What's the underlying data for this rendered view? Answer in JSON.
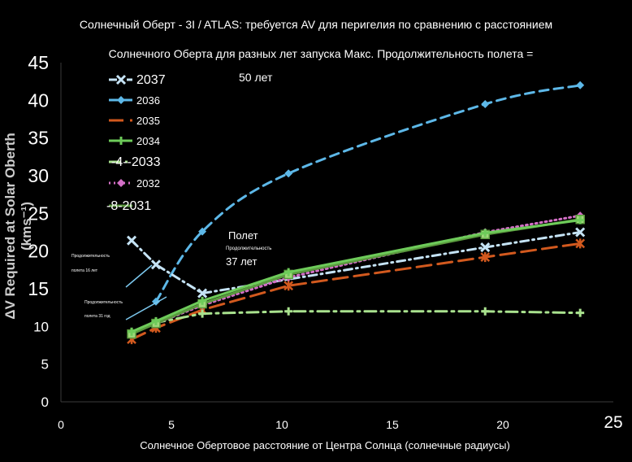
{
  "chart_data": {
    "type": "line",
    "title_lines": [
      "Солнечный Оберт - 3I / ATLAS: требуется AV для перигелия по сравнению с расстоянием",
      "Солнечного Оберта для разных лет запуска Макс. Продолжительность полета =",
      "50 лет"
    ],
    "xlabel": "Солнечное Обертовое расстояние от Центра Солнца (солнечные радиусы)",
    "ylabel": "ΔV Required at Solar Oberth (kms⁻¹)",
    "xlim": [
      0,
      25
    ],
    "ylim": [
      0,
      45
    ],
    "x_ticks": [
      "0",
      "5",
      "10",
      "15",
      "20",
      "25"
    ],
    "y_ticks": [
      "0",
      "5",
      "10",
      "15",
      "20",
      "25",
      "30",
      "35",
      "40",
      "45"
    ],
    "legend_position": "top-left",
    "series": [
      {
        "name": "2037",
        "legend_label": "2037",
        "color": "#c5e3f5",
        "dash": "dashdot",
        "marker": "x",
        "x": [
          3.2,
          4.3,
          6.4,
          19.2,
          23.5
        ],
        "y": [
          21.4,
          18.2,
          14.4,
          20.5,
          22.5
        ]
      },
      {
        "name": "2036",
        "legend_label": "2036",
        "color": "#5db8e8",
        "dash": "dash",
        "marker": "diamond",
        "x": [
          4.3,
          6.4,
          10.3,
          19.2,
          23.5
        ],
        "y": [
          13.3,
          22.6,
          30.3,
          39.5,
          42.0
        ]
      },
      {
        "name": "2035",
        "legend_label": "2035",
        "color": "#d2591e",
        "dash": "longdash",
        "marker": "asterisk",
        "x": [
          3.2,
          4.3,
          6.4,
          10.3,
          19.2,
          23.5
        ],
        "y": [
          8.3,
          9.8,
          12.2,
          15.4,
          19.2,
          21.0
        ]
      },
      {
        "name": "2034",
        "legend_label": "2034",
        "color": "#6ecb5a",
        "dash": "solid",
        "marker": "plus",
        "x": [
          3.2,
          4.3,
          6.4,
          10.3,
          19.2,
          23.5
        ],
        "y": [
          9.3,
          10.7,
          13.4,
          17.2,
          22.4,
          24.1
        ]
      },
      {
        "name": "2033",
        "legend_label": "-4--2033",
        "color": "#a9e28e",
        "dash": "dashdotlong",
        "marker": "plus",
        "x": [
          3.2,
          4.3,
          6.4,
          10.3,
          19.2,
          23.5
        ],
        "y": [
          9.3,
          10.5,
          11.7,
          12.0,
          12.0,
          11.8
        ]
      },
      {
        "name": "2032",
        "legend_label": "2032",
        "color": "#d36fc6",
        "dash": "dot",
        "marker": "diamond",
        "x": [
          3.2,
          4.3,
          6.4,
          10.3,
          19.2,
          23.5
        ],
        "y": [
          9.2,
          10.4,
          12.8,
          16.5,
          22.5,
          24.7
        ]
      },
      {
        "name": "2031",
        "legend_label": "-8-2031",
        "color": "#5a9a3e",
        "dash": "solid",
        "marker": "square",
        "x": [
          3.2,
          4.3,
          6.4,
          10.3,
          19.2,
          23.5
        ],
        "y": [
          9.0,
          10.4,
          13.0,
          16.9,
          22.2,
          24.2
        ]
      }
    ],
    "annotations": [
      {
        "text": "Полет",
        "kind": "big"
      },
      {
        "text": "Продолжительность",
        "kind": "tiny"
      },
      {
        "text": "37 лет",
        "kind": "big"
      },
      {
        "text": "Продолжительность",
        "kind": "tiny"
      },
      {
        "text": "полета 16 лет",
        "kind": "tiny"
      },
      {
        "text": "Продолжительность",
        "kind": "tiny"
      },
      {
        "text": "полета 31 год",
        "kind": "tiny"
      }
    ]
  }
}
